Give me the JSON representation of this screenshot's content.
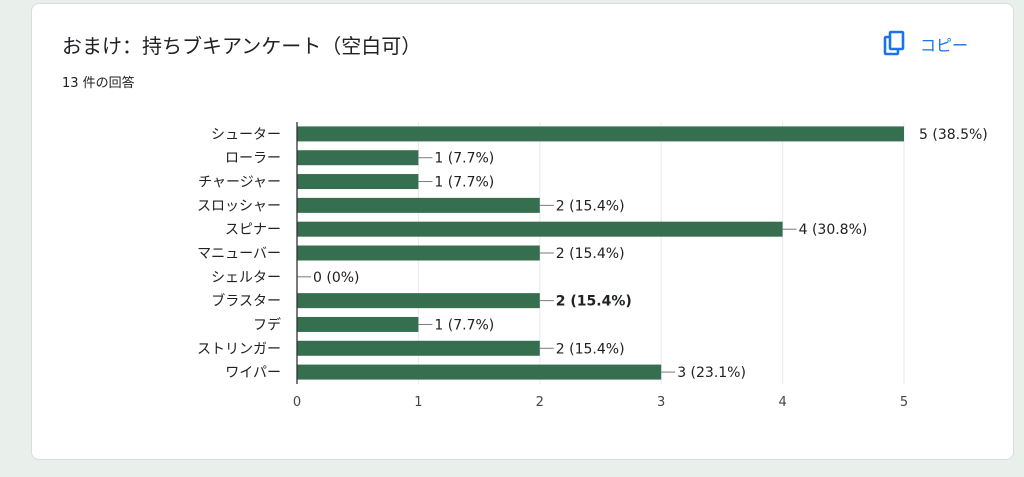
{
  "header": {
    "title": "おまけ：持ちブキアンケート（空白可）",
    "response_count": "13 件の回答",
    "copy_label": "コピー",
    "copy_icon": "copy-icon"
  },
  "colors": {
    "bar": "#356f4f",
    "accent": "#1a73e8",
    "text": "#202124",
    "axis_text": "#444746",
    "grid": "#e8eaed",
    "background": "#e9efea"
  },
  "chart_data": {
    "type": "bar",
    "orientation": "horizontal",
    "categories": [
      "シューター",
      "ローラー",
      "チャージャー",
      "スロッシャー",
      "スピナー",
      "マニューバー",
      "シェルター",
      "ブラスター",
      "フデ",
      "ストリンガー",
      "ワイパー"
    ],
    "values": [
      5,
      1,
      1,
      2,
      4,
      2,
      0,
      2,
      1,
      2,
      3
    ],
    "data_labels": [
      "5 (38.5%)",
      "1 (7.7%)",
      "1 (7.7%)",
      "2 (15.4%)",
      "4 (30.8%)",
      "2 (15.4%)",
      "0 (0%)",
      "2 (15.4%)",
      "1 (7.7%)",
      "2 (15.4%)",
      "3 (23.1%)"
    ],
    "bold_label_index": 7,
    "x_ticks": [
      "0",
      "1",
      "2",
      "3",
      "4",
      "5"
    ],
    "xlim": [
      0,
      5
    ],
    "grid": true,
    "legend": "none"
  }
}
